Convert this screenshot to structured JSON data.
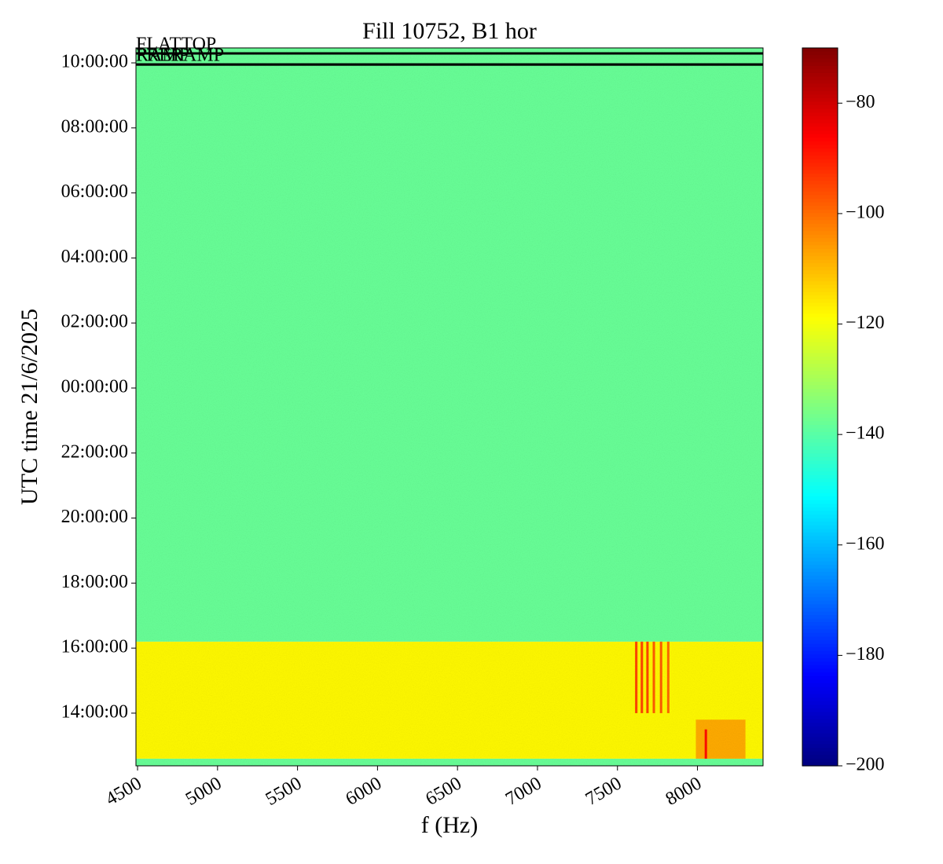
{
  "chart_data": {
    "type": "spectrogram",
    "title": "Fill 10752, B1 hor",
    "x_label": "f (Hz)",
    "y_label": "UTC time 21/6/2025",
    "xlim": [
      4490,
      8410
    ],
    "xticks": [
      4500,
      5000,
      5500,
      6000,
      6500,
      7000,
      7500,
      8000
    ],
    "ylim": [
      12.38,
      34.46
    ],
    "yticks": [
      {
        "value": 14,
        "label": "14:00:00"
      },
      {
        "value": 16,
        "label": "16:00:00"
      },
      {
        "value": 18,
        "label": "18:00:00"
      },
      {
        "value": 20,
        "label": "20:00:00"
      },
      {
        "value": 22,
        "label": "22:00:00"
      },
      {
        "value": 24,
        "label": "00:00:00"
      },
      {
        "value": 26,
        "label": "02:00:00"
      },
      {
        "value": 28,
        "label": "04:00:00"
      },
      {
        "value": 30,
        "label": "06:00:00"
      },
      {
        "value": 32,
        "label": "08:00:00"
      },
      {
        "value": 34,
        "label": "10:00:00"
      }
    ],
    "clim": [
      -200,
      -70
    ],
    "cticks": [
      {
        "value": -200,
        "label": "−200"
      },
      {
        "value": -180,
        "label": "−180"
      },
      {
        "value": -160,
        "label": "−160"
      },
      {
        "value": -140,
        "label": "−140"
      },
      {
        "value": -120,
        "label": "−120"
      },
      {
        "value": -100,
        "label": "−100"
      },
      {
        "value": -80,
        "label": "−80"
      }
    ],
    "colormap": "jet",
    "regions": [
      {
        "f0": 4490,
        "f1": 8410,
        "t0": 12.38,
        "t1": 12.6,
        "value": -138
      },
      {
        "f0": 4490,
        "f1": 8410,
        "t0": 12.6,
        "t1": 16.2,
        "value": -118
      },
      {
        "f0": 4490,
        "f1": 8410,
        "t0": 16.2,
        "t1": 34.46,
        "value": -138
      },
      {
        "f0": 7610,
        "f1": 7625,
        "t0": 14.0,
        "t1": 16.2,
        "value": -95
      },
      {
        "f0": 7645,
        "f1": 7660,
        "t0": 14.0,
        "t1": 16.2,
        "value": -95
      },
      {
        "f0": 7680,
        "f1": 7695,
        "t0": 14.0,
        "t1": 16.2,
        "value": -95
      },
      {
        "f0": 7720,
        "f1": 7735,
        "t0": 14.0,
        "t1": 16.2,
        "value": -98
      },
      {
        "f0": 7765,
        "f1": 7780,
        "t0": 14.0,
        "t1": 16.2,
        "value": -98
      },
      {
        "f0": 7810,
        "f1": 7825,
        "t0": 14.0,
        "t1": 16.2,
        "value": -100
      },
      {
        "f0": 7990,
        "f1": 8300,
        "t0": 12.6,
        "t1": 13.8,
        "value": -108
      },
      {
        "f0": 8045,
        "f1": 8060,
        "t0": 12.6,
        "t1": 13.5,
        "value": -88
      }
    ],
    "events": [
      {
        "label": "FLATTOP",
        "t": 34.29
      },
      {
        "label": "PRERAMP",
        "t": 33.95
      },
      {
        "label": "RAMP",
        "t": 33.95
      }
    ]
  }
}
